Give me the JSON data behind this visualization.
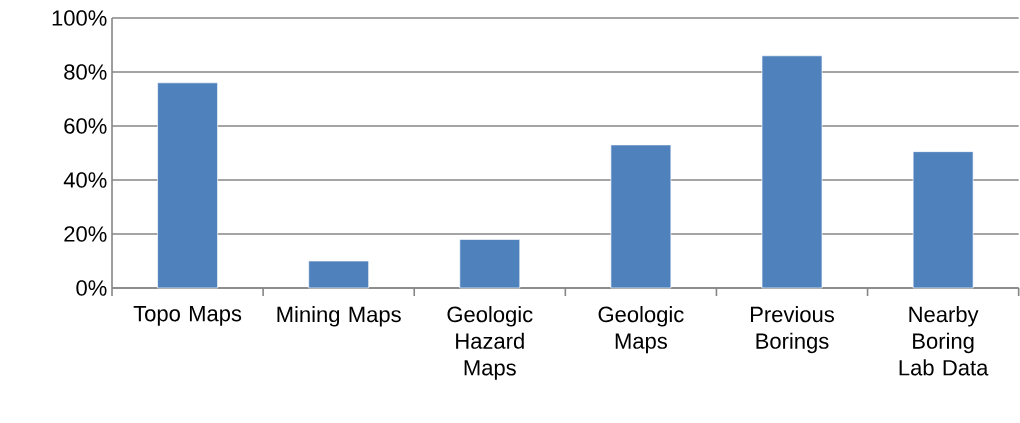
{
  "chart_data": {
    "type": "bar",
    "categories": [
      "Topo Maps",
      "Mining Maps",
      "Geologic Hazard Maps",
      "Geologic Maps",
      "Previous Borings",
      "Nearby Boring Lab Data"
    ],
    "values": [
      76,
      10,
      18,
      53,
      86,
      50.5
    ],
    "color": "#4f81bd",
    "ylim": [
      0,
      100
    ],
    "yticks": [
      {
        "value": 0,
        "label": "0%"
      },
      {
        "value": 20,
        "label": "20%"
      },
      {
        "value": 40,
        "label": "40%"
      },
      {
        "value": 60,
        "label": "60%"
      },
      {
        "value": 80,
        "label": "80%"
      },
      {
        "value": 100,
        "label": "100%"
      }
    ],
    "grid": "y"
  }
}
